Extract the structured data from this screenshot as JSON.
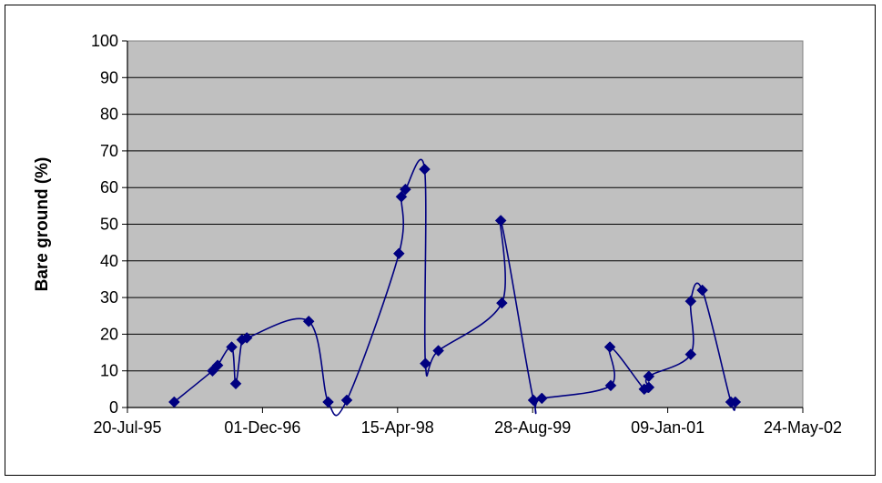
{
  "chart_data": {
    "type": "scatter",
    "title": "",
    "xlabel": "",
    "ylabel": "Bare ground (%)",
    "ylim": [
      0,
      100
    ],
    "xlim": [
      "1995-07-20",
      "2002-05-24"
    ],
    "y_ticks": [
      0,
      10,
      20,
      30,
      40,
      50,
      60,
      70,
      80,
      90,
      100
    ],
    "x_ticks": [
      {
        "date": "1995-07-20",
        "label": "20-Jul-95"
      },
      {
        "date": "1996-12-01",
        "label": "01-Dec-96"
      },
      {
        "date": "1998-04-15",
        "label": "15-Apr-98"
      },
      {
        "date": "1999-08-28",
        "label": "28-Aug-99"
      },
      {
        "date": "2001-01-09",
        "label": "09-Jan-01"
      },
      {
        "date": "2002-05-24",
        "label": "24-May-02"
      }
    ],
    "grid": true,
    "legend": "none",
    "plot_background": "#C0C0C0",
    "series_color": "#000080",
    "marker": "diamond",
    "smoothed_line": true,
    "points": [
      {
        "x": "1996-01-09",
        "y": 1.5
      },
      {
        "x": "1996-05-30",
        "y": 10.0
      },
      {
        "x": "1996-06-18",
        "y": 11.5
      },
      {
        "x": "1996-08-09",
        "y": 16.5
      },
      {
        "x": "1996-08-24",
        "y": 6.5
      },
      {
        "x": "1996-09-16",
        "y": 18.5
      },
      {
        "x": "1996-10-04",
        "y": 19.0
      },
      {
        "x": "1997-05-21",
        "y": 23.5
      },
      {
        "x": "1997-08-01",
        "y": 1.5
      },
      {
        "x": "1997-10-09",
        "y": 2.0
      },
      {
        "x": "1998-04-20",
        "y": 42.0
      },
      {
        "x": "1998-04-29",
        "y": 57.5
      },
      {
        "x": "1998-05-14",
        "y": 59.5
      },
      {
        "x": "1998-07-24",
        "y": 65.0
      },
      {
        "x": "1998-07-27",
        "y": 12.0
      },
      {
        "x": "1998-09-13",
        "y": 15.5
      },
      {
        "x": "1999-05-06",
        "y": 28.5
      },
      {
        "x": "1999-05-02",
        "y": 51.0
      },
      {
        "x": "1999-08-31",
        "y": 2.0
      },
      {
        "x": "1999-10-01",
        "y": 2.5
      },
      {
        "x": "2000-06-12",
        "y": 6.0
      },
      {
        "x": "2000-06-09",
        "y": 16.5
      },
      {
        "x": "2000-10-14",
        "y": 5.0
      },
      {
        "x": "2000-10-31",
        "y": 5.5
      },
      {
        "x": "2000-10-31",
        "y": 8.5
      },
      {
        "x": "2001-04-04",
        "y": 14.5
      },
      {
        "x": "2001-04-04",
        "y": 29.0
      },
      {
        "x": "2001-05-17",
        "y": 32.0
      },
      {
        "x": "2001-08-31",
        "y": 1.5
      },
      {
        "x": "2001-09-16",
        "y": 1.5
      }
    ]
  }
}
